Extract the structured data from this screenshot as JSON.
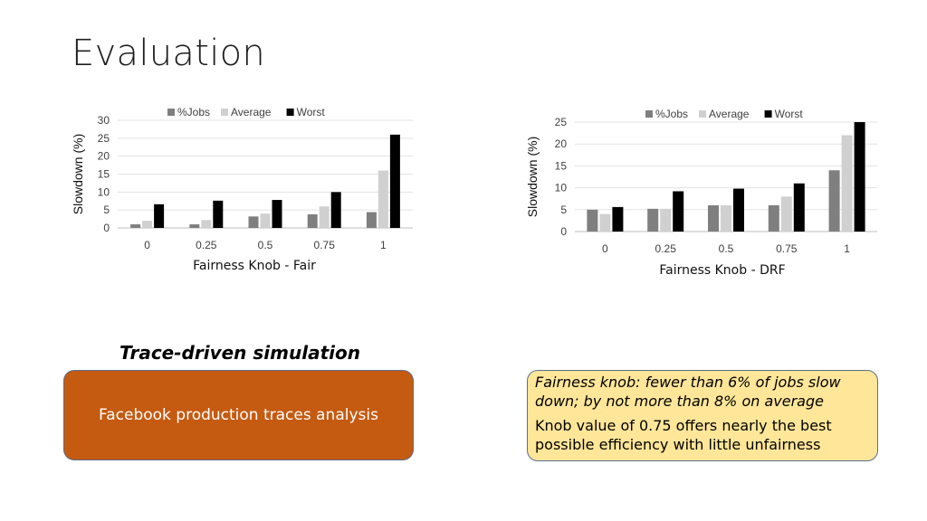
{
  "slide": {
    "title": "Evaluation",
    "simulation_heading": "Trace-driven simulation",
    "facebook_box_text": "Facebook production traces analysis",
    "note_italic": "Fairness knob: fewer than 6% of jobs slow down; by not more than 8% on average",
    "note_plain": "Knob value of 0.75 offers nearly the best possible efficiency with little unfairness"
  },
  "colors": {
    "jobs": "#7f7f7f",
    "average": "#d0d0d0",
    "worst": "#000000",
    "box_orange": "#c55a11",
    "box_yellow": "#ffe699"
  },
  "chart_data": [
    {
      "type": "bar",
      "categories": [
        "0",
        "0.25",
        "0.5",
        "0.75",
        "1"
      ],
      "series": [
        {
          "name": "%Jobs",
          "values": [
            1,
            1,
            3.2,
            3.8,
            4.4
          ]
        },
        {
          "name": "Average",
          "values": [
            2,
            2.2,
            4,
            6,
            16
          ]
        },
        {
          "name": "Worst",
          "values": [
            6.6,
            7.6,
            7.8,
            10,
            26
          ]
        }
      ],
      "xlabel": "Fairness Knob - Fair",
      "ylabel": "Slowdown (%)",
      "ylim": [
        0,
        30
      ],
      "yticks": [
        "0",
        "5",
        "10",
        "15",
        "20",
        "25",
        "30"
      ],
      "grid": true,
      "legend": "top"
    },
    {
      "type": "bar",
      "categories": [
        "0",
        "0.25",
        "0.5",
        "0.75",
        "1"
      ],
      "series": [
        {
          "name": "%Jobs",
          "values": [
            5,
            5.2,
            6,
            6,
            14
          ]
        },
        {
          "name": "Average",
          "values": [
            4,
            5.2,
            6,
            8,
            22
          ]
        },
        {
          "name": "Worst",
          "values": [
            5.6,
            9.2,
            9.8,
            11,
            25
          ]
        }
      ],
      "xlabel": "Fairness Knob - DRF",
      "ylabel": "Slowdown (%)",
      "ylim": [
        0,
        25
      ],
      "yticks": [
        "0",
        "5",
        "10",
        "15",
        "20",
        "25"
      ],
      "grid": true,
      "legend": "top"
    }
  ]
}
